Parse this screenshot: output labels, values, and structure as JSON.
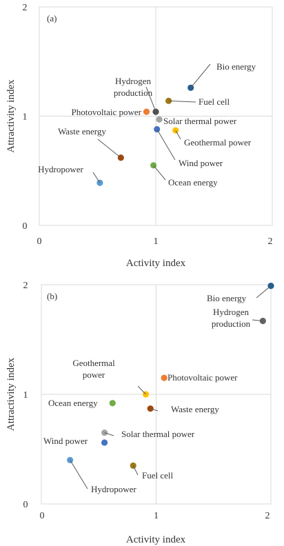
{
  "chart_data": [
    {
      "type": "scatter",
      "panel_label": "(a)",
      "xlabel": "Activity index",
      "ylabel": "Attractivity index",
      "xlim": [
        0,
        2
      ],
      "ylim": [
        0,
        2
      ],
      "x_ticks": [
        "0",
        "1",
        "2"
      ],
      "y_ticks": [
        "0",
        "1",
        "2"
      ],
      "reference_lines": {
        "x": 1,
        "y": 1
      },
      "grid": false,
      "legend": "none",
      "points": [
        {
          "label": "Bio energy",
          "x": 1.3,
          "y": 1.26,
          "color": "#255e91"
        },
        {
          "label": "Fuel cell",
          "x": 1.11,
          "y": 1.14,
          "color": "#9e7a16"
        },
        {
          "label": "Hydrogen production",
          "x": 1.0,
          "y": 1.04,
          "color": "#505050"
        },
        {
          "label": "Photovoltaic power",
          "x": 0.92,
          "y": 1.04,
          "color": "#ed7d31"
        },
        {
          "label": "Solar thermal power",
          "x": 1.03,
          "y": 0.97,
          "color": "#a5a5a5"
        },
        {
          "label": "Geothermal power",
          "x": 1.17,
          "y": 0.87,
          "color": "#ffc000"
        },
        {
          "label": "Wind power",
          "x": 1.01,
          "y": 0.88,
          "color": "#4472c4"
        },
        {
          "label": "Waste energy",
          "x": 0.7,
          "y": 0.62,
          "color": "#9e480e"
        },
        {
          "label": "Ocean energy",
          "x": 0.98,
          "y": 0.55,
          "color": "#70ad47"
        },
        {
          "label": "Hydropower",
          "x": 0.52,
          "y": 0.39,
          "color": "#5b9bd5"
        }
      ]
    },
    {
      "type": "scatter",
      "panel_label": "(b)",
      "xlabel": "Activity index",
      "ylabel": "Attractivity index",
      "xlim": [
        0,
        2
      ],
      "ylim": [
        0,
        2
      ],
      "x_ticks": [
        "0",
        "1",
        "2"
      ],
      "y_ticks": [
        "0",
        "1",
        "2"
      ],
      "reference_lines": {
        "x": 1,
        "y": 1
      },
      "grid": false,
      "legend": "none",
      "points": [
        {
          "label": "Bio energy",
          "x": 2.0,
          "y": 1.99,
          "color": "#255e91"
        },
        {
          "label": "Hydrogen production",
          "x": 1.93,
          "y": 1.67,
          "color": "#636363"
        },
        {
          "label": "Photovoltaic power",
          "x": 1.07,
          "y": 1.15,
          "color": "#ed7d31"
        },
        {
          "label": "Geothermal power",
          "x": 0.91,
          "y": 1.0,
          "color": "#ffc000"
        },
        {
          "label": "Ocean energy",
          "x": 0.62,
          "y": 0.92,
          "color": "#70ad47"
        },
        {
          "label": "Waste energy",
          "x": 0.95,
          "y": 0.87,
          "color": "#9e480e"
        },
        {
          "label": "Solar thermal power",
          "x": 0.55,
          "y": 0.65,
          "color": "#a5a5a5"
        },
        {
          "label": "Wind power",
          "x": 0.55,
          "y": 0.56,
          "color": "#4472c4"
        },
        {
          "label": "Hydropower",
          "x": 0.25,
          "y": 0.4,
          "color": "#5b9bd5"
        },
        {
          "label": "Fuel cell",
          "x": 0.8,
          "y": 0.35,
          "color": "#9e7a16"
        }
      ]
    }
  ]
}
